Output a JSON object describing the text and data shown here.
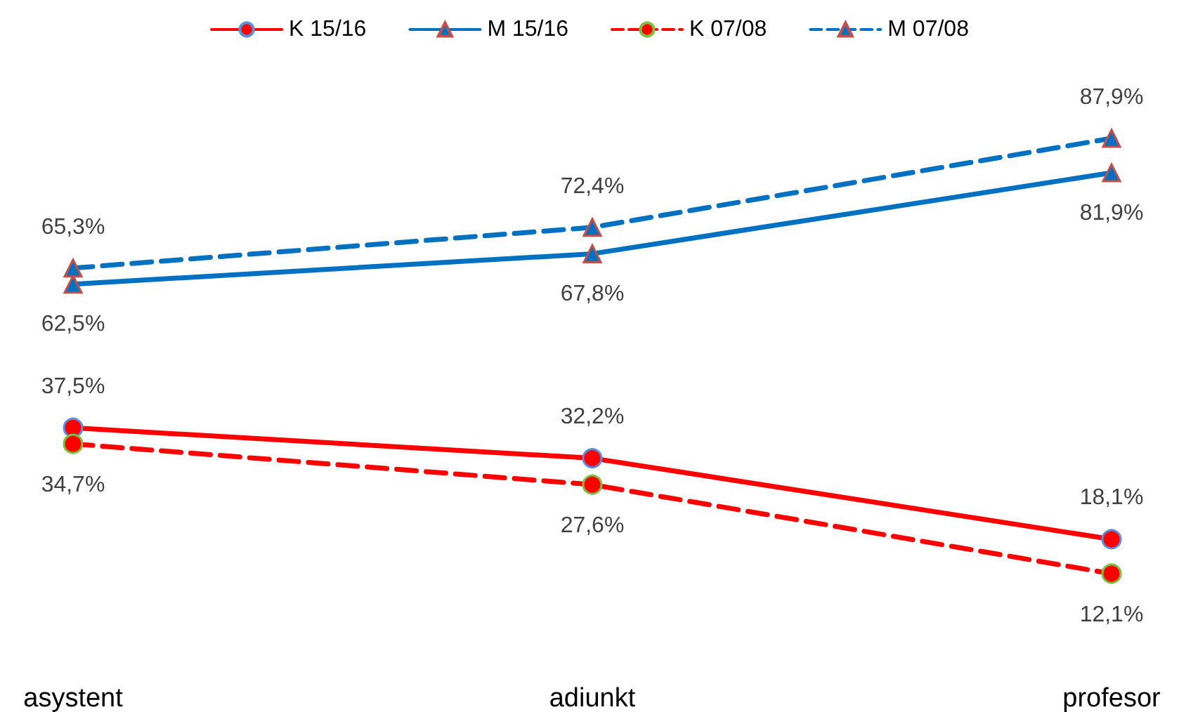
{
  "chart_data": {
    "type": "line",
    "categories": [
      "asystent",
      "adiunkt",
      "profesor"
    ],
    "series": [
      {
        "name": "K 15/16",
        "color": "#ff0000",
        "values": [
          37.5,
          32.2,
          18.1
        ],
        "value_labels": [
          "37,5%",
          "32,2%",
          "18,1%"
        ],
        "marker": "circle",
        "line_style": "solid"
      },
      {
        "name": "M 15/16",
        "color": "#0070c0",
        "values": [
          62.5,
          67.8,
          81.9
        ],
        "value_labels": [
          "62,5%",
          "67,8%",
          "81,9%"
        ],
        "marker": "triangle",
        "line_style": "solid"
      },
      {
        "name": "K 07/08",
        "color": "#ff0000",
        "values": [
          34.7,
          27.6,
          12.1
        ],
        "value_labels": [
          "34,7%",
          "27,6%",
          "12,1%"
        ],
        "marker": "circle",
        "line_style": "dashed"
      },
      {
        "name": "M 07/08",
        "color": "#0070c0",
        "values": [
          65.3,
          72.4,
          87.9
        ],
        "value_labels": [
          "65,3%",
          "72,4%",
          "87,9%"
        ],
        "marker": "triangle",
        "line_style": "dashed"
      }
    ],
    "grid": false,
    "legend": "top"
  }
}
